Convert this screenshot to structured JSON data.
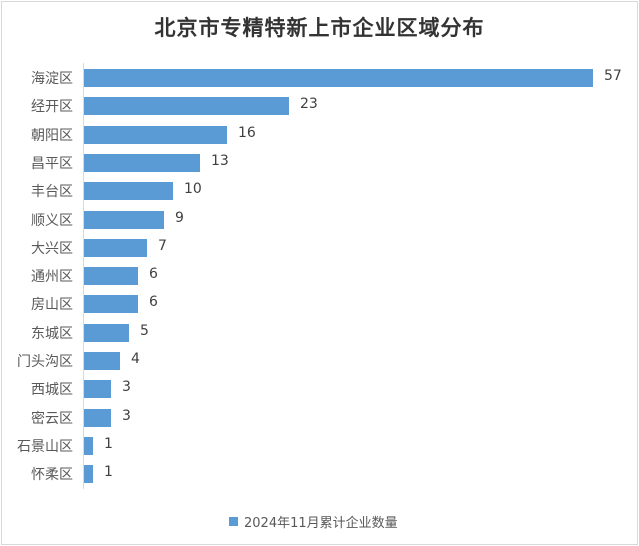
{
  "chart_data": {
    "type": "bar",
    "orientation": "horizontal",
    "title": "北京市专精特新上市企业区域分布",
    "xlabel": "",
    "ylabel": "",
    "categories": [
      "海淀区",
      "经开区",
      "朝阳区",
      "昌平区",
      "丰台区",
      "顺义区",
      "大兴区",
      "通州区",
      "房山区",
      "东城区",
      "门头沟区",
      "西城区",
      "密云区",
      "石景山区",
      "怀柔区"
    ],
    "series": [
      {
        "name": "2024年11月累计企业数量",
        "color": "#5b9bd5",
        "values": [
          57,
          23,
          16,
          13,
          10,
          9,
          7,
          6,
          6,
          5,
          4,
          3,
          3,
          1,
          1
        ]
      }
    ],
    "data_labels": true,
    "grid": false,
    "legend_position": "bottom",
    "xlim": [
      0,
      57
    ]
  },
  "title": "北京市专精特新上市企业区域分布",
  "legend": {
    "label": "2024年11月累计企业数量",
    "color": "#5b9bd5"
  },
  "rows": [
    {
      "label": "海淀区",
      "value": "57"
    },
    {
      "label": "经开区",
      "value": "23"
    },
    {
      "label": "朝阳区",
      "value": "16"
    },
    {
      "label": "昌平区",
      "value": "13"
    },
    {
      "label": "丰台区",
      "value": "10"
    },
    {
      "label": "顺义区",
      "value": "9"
    },
    {
      "label": "大兴区",
      "value": "7"
    },
    {
      "label": "通州区",
      "value": "6"
    },
    {
      "label": "房山区",
      "value": "6"
    },
    {
      "label": "东城区",
      "value": "5"
    },
    {
      "label": "门头沟区",
      "value": "4"
    },
    {
      "label": "西城区",
      "value": "3"
    },
    {
      "label": "密云区",
      "value": "3"
    },
    {
      "label": "石景山区",
      "value": "1"
    },
    {
      "label": "怀柔区",
      "value": "1"
    }
  ]
}
